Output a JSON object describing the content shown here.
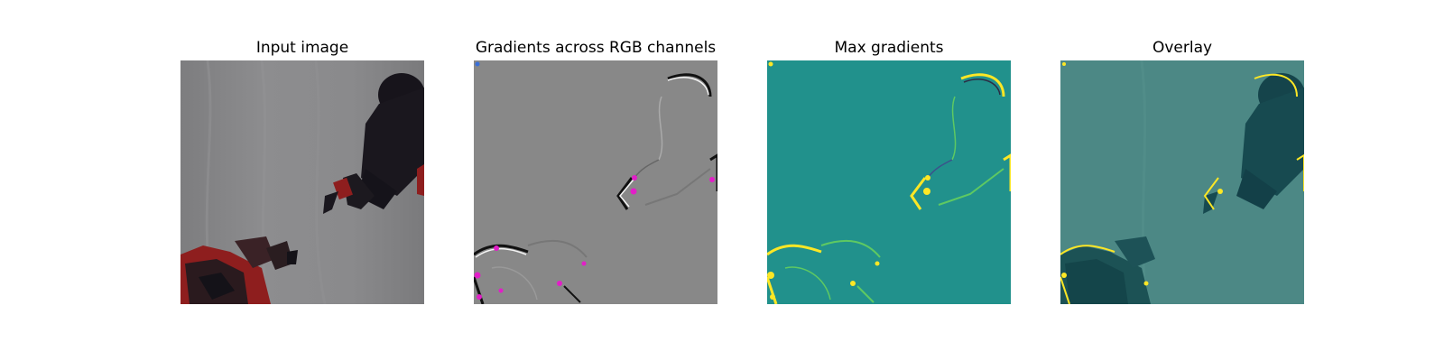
{
  "figure": {
    "panels": [
      {
        "title": "Input image",
        "image_icon": "robot-arm-photo"
      },
      {
        "title": "Gradients across RGB channels",
        "image_icon": "rgb-gradient-map"
      },
      {
        "title": "Max gradients",
        "image_icon": "max-gradient-heatmap"
      },
      {
        "title": "Overlay",
        "image_icon": "gradient-overlay"
      }
    ],
    "colors": {
      "background_gray": "#888888",
      "teal": "#21918c",
      "yellow": "#fde725",
      "magenta": "#e21ec8",
      "robot_dark": "#141218",
      "robot_red": "#8e1e1e"
    }
  }
}
